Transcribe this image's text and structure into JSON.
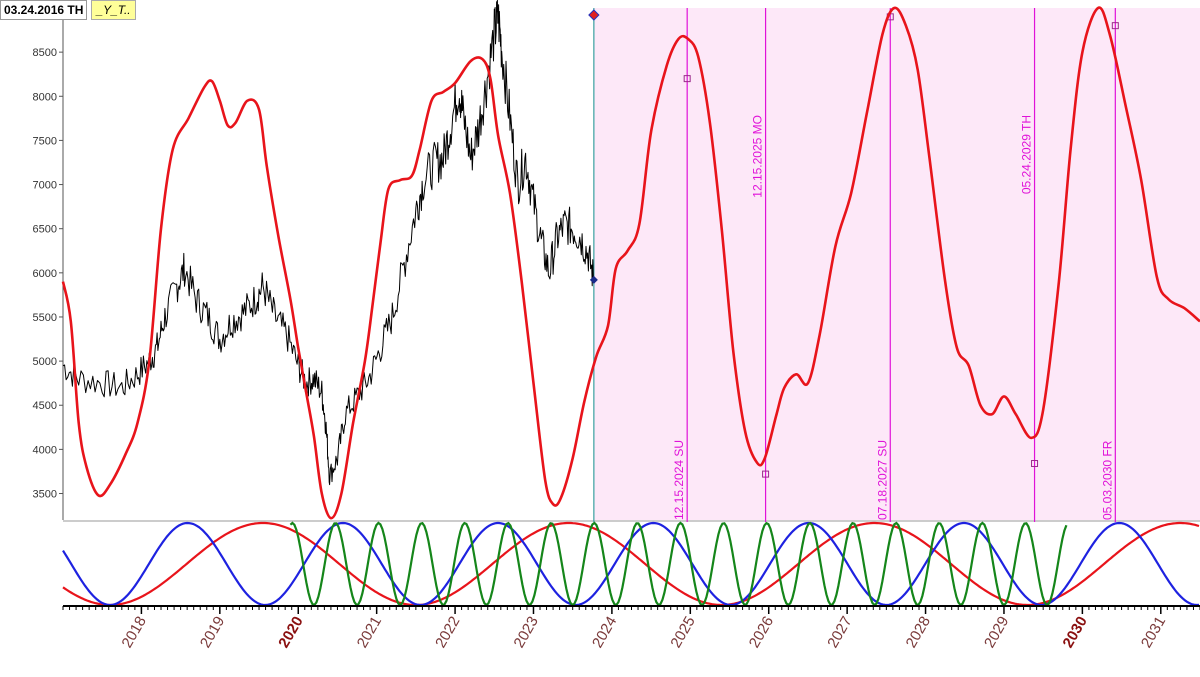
{
  "header": {
    "date": "03.24.2016 TH",
    "tag": "_Y_T.."
  },
  "colors": {
    "price": "#000000",
    "projection": "#e8141b",
    "cycle_red": "#e8141b",
    "cycle_blue": "#1e22e0",
    "cycle_green": "#15861a",
    "marker": "#e012d8",
    "future_bg": "#fde8f8",
    "today_line": "#39a0a0",
    "axis": "#555555"
  },
  "chart_data": {
    "type": "line",
    "ylim": [
      3200,
      9000
    ],
    "yticks": [
      3500,
      4000,
      4500,
      5000,
      5500,
      6000,
      6500,
      7000,
      7500,
      8000,
      8500
    ],
    "ytick_labels": [
      "3500",
      "4000",
      "4500",
      "5000",
      "5500",
      "6000",
      "6500",
      "7000",
      "7500",
      "8000",
      "8500"
    ],
    "xlim": [
      2017.0,
      2031.5
    ],
    "x_tick_labels": [
      {
        "label": "2018",
        "highlight": false
      },
      {
        "label": "2019",
        "highlight": false
      },
      {
        "label": "2020",
        "highlight": true
      },
      {
        "label": "2021",
        "highlight": false
      },
      {
        "label": "2022",
        "highlight": false
      },
      {
        "label": "2023",
        "highlight": false
      },
      {
        "label": "2024",
        "highlight": false
      },
      {
        "label": "2025",
        "highlight": false
      },
      {
        "label": "2026",
        "highlight": false
      },
      {
        "label": "2027",
        "highlight": false
      },
      {
        "label": "2028",
        "highlight": false
      },
      {
        "label": "2029",
        "highlight": false
      },
      {
        "label": "2030",
        "highlight": true
      },
      {
        "label": "2031",
        "highlight": false
      }
    ],
    "today_x": 2023.77,
    "series": [
      {
        "points": [
          [
            2017.0,
            4950
          ],
          [
            2017.2,
            4800
          ],
          [
            2017.5,
            4750
          ],
          [
            2017.75,
            4700
          ],
          [
            2017.95,
            4850
          ],
          [
            2018.1,
            5000
          ],
          [
            2018.2,
            5150
          ],
          [
            2018.3,
            5500
          ],
          [
            2018.45,
            5850
          ],
          [
            2018.55,
            6050
          ],
          [
            2018.7,
            5700
          ],
          [
            2018.85,
            5500
          ],
          [
            2019.0,
            5250
          ],
          [
            2019.15,
            5450
          ],
          [
            2019.3,
            5550
          ],
          [
            2019.45,
            5700
          ],
          [
            2019.55,
            5850
          ],
          [
            2019.7,
            5500
          ],
          [
            2019.85,
            5300
          ],
          [
            2020.0,
            4950
          ],
          [
            2020.1,
            4750
          ],
          [
            2020.2,
            4800
          ],
          [
            2020.3,
            4650
          ],
          [
            2020.35,
            4300
          ],
          [
            2020.4,
            3700
          ],
          [
            2020.5,
            3900
          ],
          [
            2020.6,
            4400
          ],
          [
            2020.75,
            4600
          ],
          [
            2020.9,
            4800
          ],
          [
            2021.05,
            5150
          ],
          [
            2021.2,
            5500
          ],
          [
            2021.35,
            6100
          ],
          [
            2021.5,
            6700
          ],
          [
            2021.6,
            7050
          ],
          [
            2021.75,
            7250
          ],
          [
            2021.85,
            7300
          ],
          [
            2021.95,
            7700
          ],
          [
            2022.05,
            8100
          ],
          [
            2022.1,
            7800
          ],
          [
            2022.2,
            7300
          ],
          [
            2022.3,
            7650
          ],
          [
            2022.4,
            8150
          ],
          [
            2022.5,
            8700
          ],
          [
            2022.55,
            8900
          ],
          [
            2022.6,
            8500
          ],
          [
            2022.7,
            7750
          ],
          [
            2022.8,
            7000
          ],
          [
            2022.9,
            7300
          ],
          [
            2023.0,
            6800
          ],
          [
            2023.1,
            6350
          ],
          [
            2023.2,
            6000
          ],
          [
            2023.3,
            6400
          ],
          [
            2023.4,
            6550
          ],
          [
            2023.5,
            6500
          ],
          [
            2023.6,
            6400
          ],
          [
            2023.7,
            6200
          ],
          [
            2023.77,
            5920
          ]
        ]
      },
      {
        "points": [
          [
            2017.0,
            5900
          ],
          [
            2017.1,
            5450
          ],
          [
            2017.2,
            4300
          ],
          [
            2017.3,
            3800
          ],
          [
            2017.45,
            3480
          ],
          [
            2017.6,
            3600
          ],
          [
            2017.8,
            3950
          ],
          [
            2017.95,
            4300
          ],
          [
            2018.1,
            5000
          ],
          [
            2018.25,
            6500
          ],
          [
            2018.4,
            7400
          ],
          [
            2018.6,
            7750
          ],
          [
            2018.8,
            8100
          ],
          [
            2018.9,
            8170
          ],
          [
            2019.0,
            7950
          ],
          [
            2019.1,
            7670
          ],
          [
            2019.2,
            7700
          ],
          [
            2019.35,
            7950
          ],
          [
            2019.5,
            7850
          ],
          [
            2019.6,
            7200
          ],
          [
            2019.75,
            6400
          ],
          [
            2019.9,
            5700
          ],
          [
            2020.0,
            5150
          ],
          [
            2020.1,
            4650
          ],
          [
            2020.2,
            4150
          ],
          [
            2020.3,
            3500
          ],
          [
            2020.42,
            3220
          ],
          [
            2020.55,
            3500
          ],
          [
            2020.7,
            4300
          ],
          [
            2020.85,
            5000
          ],
          [
            2020.95,
            5650
          ],
          [
            2021.05,
            6350
          ],
          [
            2021.15,
            6950
          ],
          [
            2021.3,
            7050
          ],
          [
            2021.45,
            7100
          ],
          [
            2021.55,
            7400
          ],
          [
            2021.7,
            7950
          ],
          [
            2021.85,
            8050
          ],
          [
            2022.0,
            8150
          ],
          [
            2022.2,
            8400
          ],
          [
            2022.35,
            8420
          ],
          [
            2022.45,
            8200
          ],
          [
            2022.55,
            7550
          ],
          [
            2022.7,
            6900
          ],
          [
            2022.85,
            5900
          ],
          [
            2023.0,
            4750
          ],
          [
            2023.15,
            3650
          ],
          [
            2023.25,
            3380
          ],
          [
            2023.35,
            3450
          ],
          [
            2023.5,
            3900
          ],
          [
            2023.65,
            4550
          ],
          [
            2023.8,
            5050
          ],
          [
            2023.95,
            5400
          ],
          [
            2024.05,
            6050
          ],
          [
            2024.2,
            6250
          ],
          [
            2024.35,
            6550
          ],
          [
            2024.5,
            7600
          ],
          [
            2024.7,
            8350
          ],
          [
            2024.85,
            8650
          ],
          [
            2024.97,
            8650
          ],
          [
            2025.1,
            8450
          ],
          [
            2025.25,
            7700
          ],
          [
            2025.4,
            6500
          ],
          [
            2025.55,
            5100
          ],
          [
            2025.7,
            4200
          ],
          [
            2025.85,
            3850
          ],
          [
            2025.95,
            3900
          ],
          [
            2026.1,
            4400
          ],
          [
            2026.2,
            4700
          ],
          [
            2026.35,
            4850
          ],
          [
            2026.5,
            4750
          ],
          [
            2026.65,
            5300
          ],
          [
            2026.85,
            6300
          ],
          [
            2027.05,
            6900
          ],
          [
            2027.25,
            7800
          ],
          [
            2027.45,
            8700
          ],
          [
            2027.6,
            9000
          ],
          [
            2027.75,
            8800
          ],
          [
            2027.9,
            8300
          ],
          [
            2028.05,
            7300
          ],
          [
            2028.25,
            5900
          ],
          [
            2028.4,
            5150
          ],
          [
            2028.55,
            4950
          ],
          [
            2028.7,
            4500
          ],
          [
            2028.85,
            4400
          ],
          [
            2029.0,
            4600
          ],
          [
            2029.15,
            4400
          ],
          [
            2029.35,
            4130
          ],
          [
            2029.5,
            4450
          ],
          [
            2029.7,
            5900
          ],
          [
            2029.85,
            7400
          ],
          [
            2030.0,
            8500
          ],
          [
            2030.2,
            9000
          ],
          [
            2030.35,
            8700
          ],
          [
            2030.55,
            7900
          ],
          [
            2030.75,
            7050
          ],
          [
            2030.95,
            5950
          ],
          [
            2031.1,
            5700
          ],
          [
            2031.3,
            5600
          ],
          [
            2031.5,
            5450
          ]
        ]
      }
    ],
    "annotations": [
      {
        "x": 2024.96,
        "label": "12.15.2024 SU",
        "label_side": "bottom",
        "marker_y": 8200
      },
      {
        "x": 2025.96,
        "label": "12.15.2025 MO",
        "label_side": "top",
        "marker_y": 3720
      },
      {
        "x": 2027.55,
        "label": "07.18.2027 SU",
        "label_side": "bottom",
        "marker_y": 8900
      },
      {
        "x": 2029.39,
        "label": "05.24.2029 TH",
        "label_side": "top",
        "marker_y": 3840
      },
      {
        "x": 2030.42,
        "label": "05.03.2030 FR",
        "label_side": "bottom",
        "marker_y": 8800
      }
    ],
    "cycles": [
      {
        "color_key": "cycle_red",
        "period_years": 3.9,
        "trough_x": 2017.6,
        "start": 2017.0,
        "end": 2031.5
      },
      {
        "color_key": "cycle_blue",
        "period_years": 1.98,
        "trough_x": 2017.6,
        "start": 2017.0,
        "end": 2031.5
      },
      {
        "color_key": "cycle_green",
        "period_years": 0.55,
        "trough_x": 2020.2,
        "start": 2019.9,
        "end": 2029.8
      }
    ]
  }
}
